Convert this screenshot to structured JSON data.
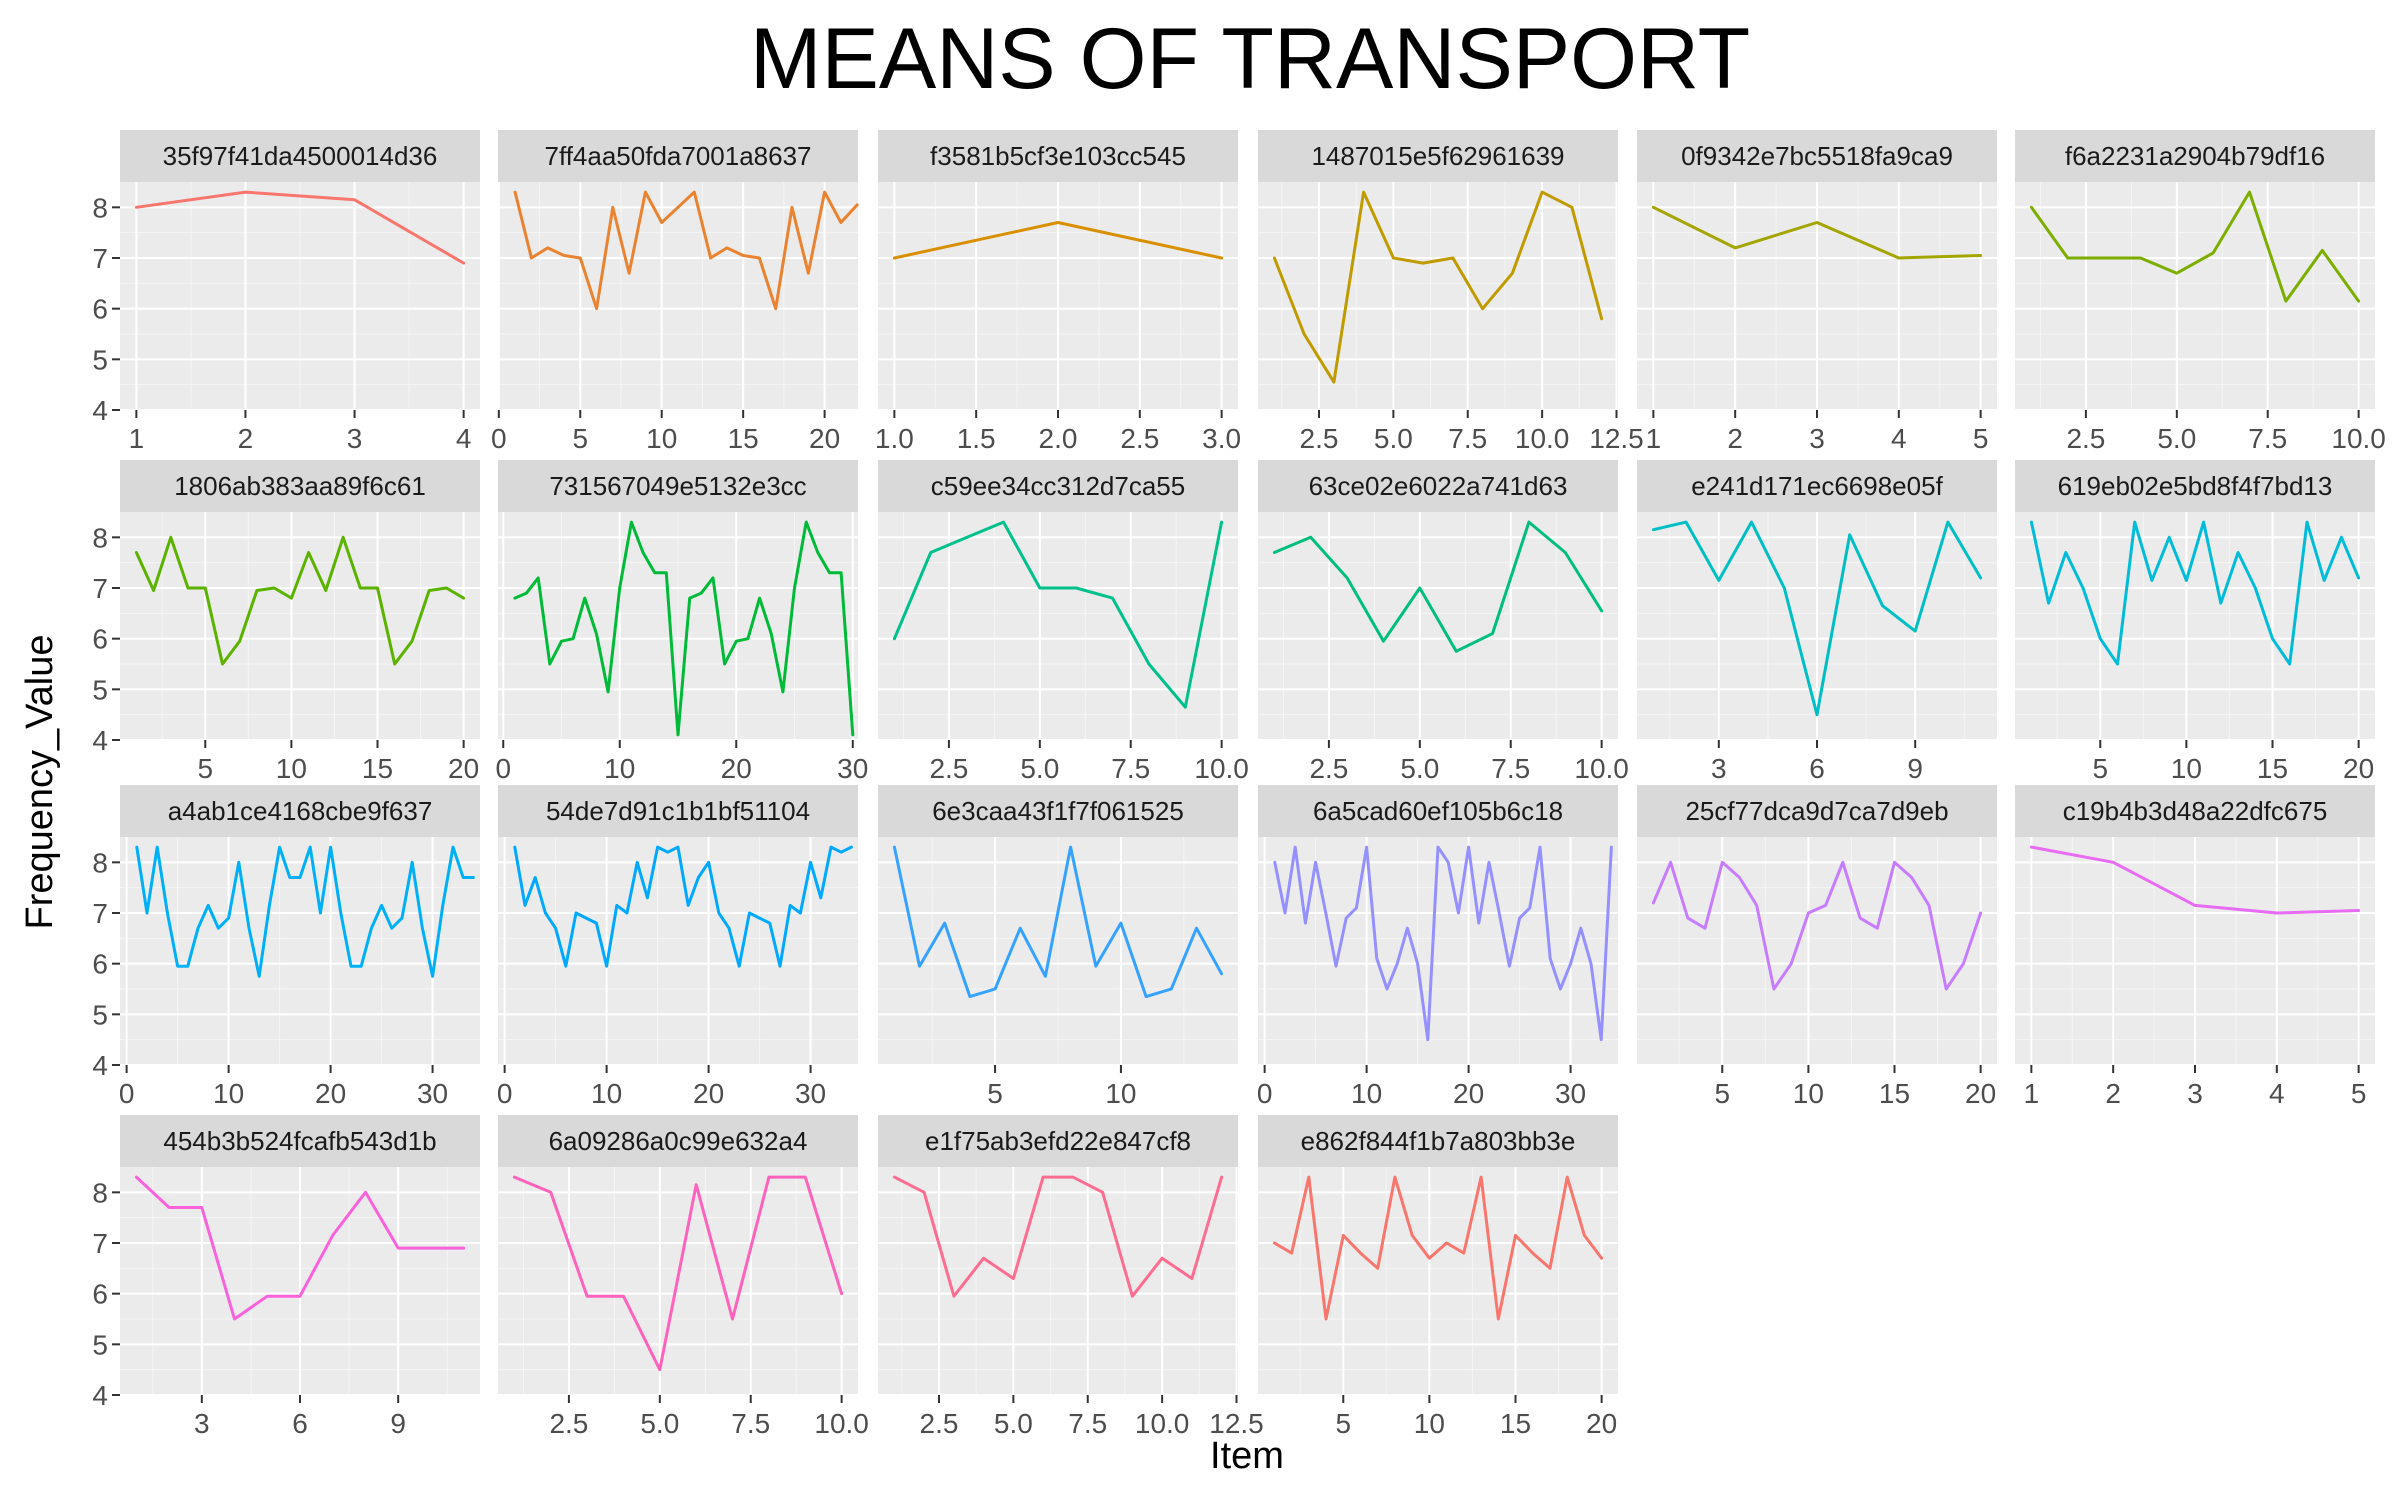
{
  "chart_data": {
    "type": "line",
    "title": "MEANS OF TRANSPORT",
    "xlabel": "Item",
    "ylabel": "Frequency_Value",
    "ylim": [
      4,
      8.5
    ],
    "yticks": [
      4,
      5,
      6,
      7,
      8
    ],
    "grid": true,
    "facets": [
      {
        "name": "35f97f41da4500014d36",
        "color": "#F8766D",
        "xticks": [
          "1",
          "2",
          "3",
          "4"
        ],
        "xtick_values": [
          1,
          2,
          3,
          4
        ],
        "xlim": [
          0.85,
          4.15
        ],
        "x": [
          1,
          2,
          3,
          4
        ],
        "y": [
          8.0,
          8.3,
          8.15,
          6.9
        ]
      },
      {
        "name": "7ff4aa50fda7001a8637",
        "color": "#EA8331",
        "xticks": [
          "0",
          "5",
          "10",
          "15",
          "20"
        ],
        "xtick_values": [
          0,
          5,
          10,
          15,
          20
        ],
        "xlim": [
          -0.05,
          22.05
        ],
        "x": [
          1,
          2,
          3,
          4,
          5,
          6,
          7,
          8,
          9,
          10,
          11,
          12,
          13,
          14,
          15,
          16,
          17,
          18,
          19,
          20,
          21,
          22
        ],
        "y": [
          8.3,
          7.0,
          7.2,
          7.05,
          7.0,
          6.0,
          8.0,
          6.7,
          8.3,
          7.7,
          8.0,
          8.3,
          7.0,
          7.2,
          7.05,
          7.0,
          6.0,
          8.0,
          6.7,
          8.3,
          7.7,
          8.05
        ]
      },
      {
        "name": "f3581b5cf3e103cc545",
        "color": "#D89000",
        "xticks": [
          "1.0",
          "1.5",
          "2.0",
          "2.5",
          "3.0"
        ],
        "xtick_values": [
          1,
          1.5,
          2,
          2.5,
          3
        ],
        "xlim": [
          0.9,
          3.1
        ],
        "x": [
          1,
          2,
          3
        ],
        "y": [
          7.0,
          7.7,
          7.0
        ]
      },
      {
        "name": "1487015e5f62961639",
        "color": "#C09B00",
        "xticks": [
          "2.5",
          "5.0",
          "7.5",
          "10.0",
          "12.5"
        ],
        "xtick_values": [
          2.5,
          5,
          7.5,
          10,
          12.5
        ],
        "xlim": [
          0.45,
          12.55
        ],
        "x": [
          1,
          2,
          3,
          4,
          5,
          6,
          7,
          8,
          9,
          10,
          11,
          12
        ],
        "y": [
          7.0,
          5.5,
          4.55,
          8.3,
          7.0,
          6.9,
          7.0,
          6.0,
          6.7,
          8.3,
          8.0,
          5.8
        ]
      },
      {
        "name": "0f9342e7bc5518fa9ca9",
        "color": "#A3A500",
        "xticks": [
          "1",
          "2",
          "3",
          "4",
          "5"
        ],
        "xtick_values": [
          1,
          2,
          3,
          4,
          5
        ],
        "xlim": [
          0.8,
          5.2
        ],
        "x": [
          1,
          2,
          3,
          4,
          5
        ],
        "y": [
          8.0,
          7.2,
          7.7,
          7.0,
          7.05
        ]
      },
      {
        "name": "f6a2231a2904b79df16",
        "color": "#7CAE00",
        "xticks": [
          "2.5",
          "5.0",
          "7.5",
          "10.0"
        ],
        "xtick_values": [
          2.5,
          5,
          7.5,
          10
        ],
        "xlim": [
          0.55,
          10.45
        ],
        "x": [
          1,
          2,
          3,
          4,
          5,
          6,
          7,
          8,
          9,
          10
        ],
        "y": [
          8.0,
          7.0,
          7.0,
          7.0,
          6.7,
          7.1,
          8.3,
          6.15,
          7.15,
          6.15
        ]
      },
      {
        "name": "1806ab383aa89f6c61",
        "color": "#5BB300",
        "xticks": [
          "5",
          "10",
          "15",
          "20"
        ],
        "xtick_values": [
          5,
          10,
          15,
          20
        ],
        "xlim": [
          0.05,
          20.95
        ],
        "x": [
          1,
          2,
          3,
          4,
          5,
          6,
          7,
          8,
          9,
          10,
          11,
          12,
          13,
          14,
          15,
          16,
          17,
          18,
          19,
          20
        ],
        "y": [
          7.7,
          6.95,
          8.0,
          7.0,
          7.0,
          5.5,
          5.95,
          6.95,
          7.0,
          6.8,
          7.7,
          6.95,
          8.0,
          7.0,
          7.0,
          5.5,
          5.95,
          6.95,
          7.0,
          6.8
        ]
      },
      {
        "name": "731567049e5132e3cc",
        "color": "#00BA38",
        "xticks": [
          "0",
          "10",
          "20",
          "30"
        ],
        "xtick_values": [
          0,
          10,
          20,
          30
        ],
        "xlim": [
          -0.45,
          30.45
        ],
        "x": [
          1,
          2,
          3,
          4,
          5,
          6,
          7,
          8,
          9,
          10,
          11,
          12,
          13,
          14,
          15,
          16,
          17,
          18,
          19,
          20,
          21,
          22,
          23,
          24,
          25,
          26,
          27,
          28,
          29,
          30
        ],
        "y": [
          6.8,
          6.9,
          7.2,
          5.5,
          5.95,
          6.0,
          6.8,
          6.1,
          4.95,
          7.0,
          8.3,
          7.7,
          7.3,
          7.3,
          4.1,
          6.8,
          6.9,
          7.2,
          5.5,
          5.95,
          6.0,
          6.8,
          6.1,
          4.95,
          7.0,
          8.3,
          7.7,
          7.3,
          7.3,
          4.1
        ]
      },
      {
        "name": "c59ee34cc312d7ca55",
        "color": "#00C08B",
        "xticks": [
          "2.5",
          "5.0",
          "7.5",
          "10.0"
        ],
        "xtick_values": [
          2.5,
          5,
          7.5,
          10
        ],
        "xlim": [
          0.55,
          10.45
        ],
        "x": [
          1,
          2,
          3,
          4,
          5,
          6,
          7,
          8,
          9,
          10
        ],
        "y": [
          6.0,
          7.7,
          8.0,
          8.3,
          7.0,
          7.0,
          6.8,
          5.5,
          4.65,
          8.3
        ]
      },
      {
        "name": "63ce02e6022a741d63",
        "color": "#00BF7D",
        "xticks": [
          "2.5",
          "5.0",
          "7.5",
          "10.0"
        ],
        "xtick_values": [
          2.5,
          5,
          7.5,
          10
        ],
        "xlim": [
          0.55,
          10.45
        ],
        "x": [
          1,
          2,
          3,
          4,
          5,
          6,
          7,
          8,
          9,
          10
        ],
        "y": [
          7.7,
          8.0,
          7.2,
          5.95,
          7.0,
          5.75,
          6.1,
          8.3,
          7.7,
          6.55
        ]
      },
      {
        "name": "e241d171ec6698e05f",
        "color": "#00BFC4",
        "xticks": [
          "3",
          "6",
          "9"
        ],
        "xtick_values": [
          3,
          6,
          9
        ],
        "xlim": [
          0.5,
          11.5
        ],
        "x": [
          1,
          2,
          3,
          4,
          5,
          6,
          7,
          8,
          9,
          10,
          11
        ],
        "y": [
          8.15,
          8.3,
          7.15,
          8.3,
          7.0,
          4.5,
          8.05,
          6.65,
          6.15,
          8.3,
          7.2
        ]
      },
      {
        "name": "619eb02e5bd8f4f7bd13",
        "color": "#00BCD8",
        "xticks": [
          "5",
          "10",
          "15",
          "20"
        ],
        "xtick_values": [
          5,
          10,
          15,
          20
        ],
        "xlim": [
          0.05,
          20.95
        ],
        "x": [
          1,
          2,
          3,
          4,
          5,
          6,
          7,
          8,
          9,
          10,
          11,
          12,
          13,
          14,
          15,
          16,
          17,
          18,
          19,
          20
        ],
        "y": [
          8.3,
          6.7,
          7.7,
          7.0,
          6.0,
          5.5,
          8.3,
          7.15,
          8.0,
          7.15,
          8.3,
          6.7,
          7.7,
          7.0,
          6.0,
          5.5,
          8.3,
          7.15,
          8.0,
          7.2
        ]
      },
      {
        "name": "a4ab1ce4168cbe9f637",
        "color": "#00B0F6",
        "xticks": [
          "0",
          "10",
          "20",
          "30"
        ],
        "xtick_values": [
          0,
          10,
          20,
          30
        ],
        "xlim": [
          -0.65,
          34.65
        ],
        "x": [
          1,
          2,
          3,
          4,
          5,
          6,
          7,
          8,
          9,
          10,
          11,
          12,
          13,
          14,
          15,
          16,
          17,
          18,
          19,
          20,
          21,
          22,
          23,
          24,
          25,
          26,
          27,
          28,
          29,
          30,
          31,
          32,
          33,
          34
        ],
        "y": [
          8.3,
          7.0,
          8.3,
          7.0,
          5.95,
          5.95,
          6.7,
          7.15,
          6.7,
          6.9,
          8.0,
          6.7,
          5.75,
          7.15,
          8.3,
          7.7,
          7.7,
          8.3,
          7.0,
          8.3,
          7.0,
          5.95,
          5.95,
          6.7,
          7.15,
          6.7,
          6.9,
          8.0,
          6.7,
          5.75,
          7.15,
          8.3,
          7.7,
          7.7
        ]
      },
      {
        "name": "54de7d91c1b1bf51104",
        "color": "#00A9FF",
        "xticks": [
          "0",
          "10",
          "20",
          "30"
        ],
        "xtick_values": [
          0,
          10,
          20,
          30
        ],
        "xlim": [
          -0.65,
          34.65
        ],
        "x": [
          1,
          2,
          3,
          4,
          5,
          6,
          7,
          8,
          9,
          10,
          11,
          12,
          13,
          14,
          15,
          16,
          17,
          18,
          19,
          20,
          21,
          22,
          23,
          24,
          25,
          26,
          27,
          28,
          29,
          30,
          31,
          32,
          33,
          34
        ],
        "y": [
          8.3,
          7.15,
          7.7,
          7.0,
          6.7,
          5.95,
          7.0,
          6.9,
          6.8,
          5.95,
          7.15,
          7.0,
          8.0,
          7.3,
          8.3,
          8.2,
          8.3,
          7.15,
          7.7,
          8.0,
          7.0,
          6.7,
          5.95,
          7.0,
          6.9,
          6.8,
          5.95,
          7.15,
          7.0,
          8.0,
          7.3,
          8.3,
          8.2,
          8.3
        ]
      },
      {
        "name": "6e3caa43f1f7f061525",
        "color": "#35A2FF",
        "xticks": [
          "5",
          "10"
        ],
        "xtick_values": [
          5,
          10
        ],
        "xlim": [
          0.35,
          14.65
        ],
        "x": [
          1,
          2,
          3,
          4,
          5,
          6,
          7,
          8,
          9,
          10,
          11,
          12,
          13,
          14
        ],
        "y": [
          8.3,
          5.95,
          6.8,
          5.35,
          5.5,
          6.7,
          5.75,
          8.3,
          5.95,
          6.8,
          5.35,
          5.5,
          6.7,
          5.8
        ]
      },
      {
        "name": "6a5cad60ef105b6c18",
        "color": "#9590FF",
        "xticks": [
          "0",
          "10",
          "20",
          "30"
        ],
        "xtick_values": [
          0,
          10,
          20,
          30
        ],
        "xlim": [
          -0.65,
          34.65
        ],
        "x": [
          1,
          2,
          3,
          4,
          5,
          6,
          7,
          8,
          9,
          10,
          11,
          12,
          13,
          14,
          15,
          16,
          17,
          18,
          19,
          20,
          21,
          22,
          23,
          24,
          25,
          26,
          27,
          28,
          29,
          30,
          31,
          32,
          33,
          34
        ],
        "y": [
          8.0,
          7.0,
          8.3,
          6.8,
          8.0,
          7.0,
          5.95,
          6.9,
          7.1,
          8.3,
          6.1,
          5.5,
          6.0,
          6.7,
          6.0,
          4.5,
          8.3,
          8.0,
          7.0,
          8.3,
          6.8,
          8.0,
          7.0,
          5.95,
          6.9,
          7.1,
          8.3,
          6.1,
          5.5,
          6.0,
          6.7,
          6.0,
          4.5,
          8.3
        ]
      },
      {
        "name": "25cf77dca9d7ca7d9eb",
        "color": "#C77CFF",
        "xticks": [
          "5",
          "10",
          "15",
          "20"
        ],
        "xtick_values": [
          5,
          10,
          15,
          20
        ],
        "xlim": [
          0.05,
          20.95
        ],
        "x": [
          1,
          2,
          3,
          4,
          5,
          6,
          7,
          8,
          9,
          10,
          11,
          12,
          13,
          14,
          15,
          16,
          17,
          18,
          19,
          20
        ],
        "y": [
          7.2,
          8.0,
          6.9,
          6.7,
          8.0,
          7.7,
          7.15,
          5.5,
          6.0,
          7.0,
          7.15,
          8.0,
          6.9,
          6.7,
          8.0,
          7.7,
          7.15,
          5.5,
          6.0,
          7.0
        ]
      },
      {
        "name": "c19b4b3d48a22dfc675",
        "color": "#E76BF3",
        "xticks": [
          "1",
          "2",
          "3",
          "4",
          "5"
        ],
        "xtick_values": [
          1,
          2,
          3,
          4,
          5
        ],
        "xlim": [
          0.8,
          5.2
        ],
        "x": [
          1,
          2,
          3,
          4,
          5
        ],
        "y": [
          8.3,
          8.0,
          7.15,
          7.0,
          7.05
        ]
      },
      {
        "name": "454b3b524fcafb543d1b",
        "color": "#FA62DB",
        "xticks": [
          "3",
          "6",
          "9"
        ],
        "xtick_values": [
          3,
          6,
          9
        ],
        "xlim": [
          0.5,
          11.5
        ],
        "x": [
          1,
          2,
          3,
          4,
          5,
          6,
          7,
          8,
          9,
          10,
          11
        ],
        "y": [
          8.3,
          7.7,
          7.7,
          5.5,
          5.95,
          5.95,
          7.15,
          8.0,
          6.9,
          6.9,
          6.9
        ]
      },
      {
        "name": "6a09286a0c99e632a4",
        "color": "#FF62BC",
        "xticks": [
          "2.5",
          "5.0",
          "7.5",
          "10.0"
        ],
        "xtick_values": [
          2.5,
          5,
          7.5,
          10
        ],
        "xlim": [
          0.55,
          10.45
        ],
        "x": [
          1,
          2,
          3,
          4,
          5,
          6,
          7,
          8,
          9,
          10
        ],
        "y": [
          8.3,
          8.0,
          5.95,
          5.95,
          4.5,
          8.15,
          5.5,
          8.3,
          8.3,
          6.0
        ]
      },
      {
        "name": "e1f75ab3efd22e847cf8",
        "color": "#FF6C91",
        "xticks": [
          "2.5",
          "5.0",
          "7.5",
          "10.0",
          "12.5"
        ],
        "xtick_values": [
          2.5,
          5,
          7.5,
          10,
          12.5
        ],
        "xlim": [
          0.45,
          12.55
        ],
        "x": [
          1,
          2,
          3,
          4,
          5,
          6,
          7,
          8,
          9,
          10,
          11,
          12
        ],
        "y": [
          8.3,
          8.0,
          5.95,
          6.7,
          6.3,
          8.3,
          8.3,
          8.0,
          5.95,
          6.7,
          6.3,
          8.3
        ]
      },
      {
        "name": "e862f844f1b7a803bb3e",
        "color": "#F8766D",
        "xticks": [
          "5",
          "10",
          "15",
          "20"
        ],
        "xtick_values": [
          5,
          10,
          15,
          20
        ],
        "xlim": [
          0.05,
          20.95
        ],
        "x": [
          1,
          2,
          3,
          4,
          5,
          6,
          7,
          8,
          9,
          10,
          11,
          12,
          13,
          14,
          15,
          16,
          17,
          18,
          19,
          20
        ],
        "y": [
          7.0,
          6.8,
          8.3,
          5.5,
          7.15,
          6.8,
          6.5,
          8.3,
          7.15,
          6.7,
          7.0,
          6.8,
          8.3,
          5.5,
          7.15,
          6.8,
          6.5,
          8.3,
          7.15,
          6.7
        ]
      }
    ]
  }
}
